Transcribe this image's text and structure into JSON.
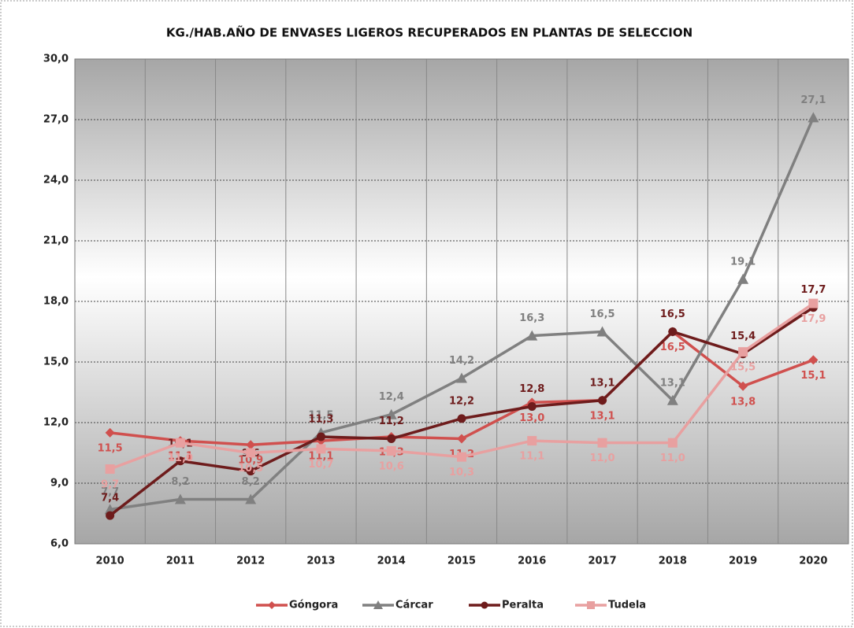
{
  "chart_data": {
    "type": "line",
    "title": "KG./HAB.AÑO DE ENVASES LIGEROS RECUPERADOS EN PLANTAS DE SELECCION",
    "categories": [
      "2010",
      "2011",
      "2012",
      "2013",
      "2014",
      "2015",
      "2016",
      "2017",
      "2018",
      "2019",
      "2020"
    ],
    "series": [
      {
        "name": "Góngora",
        "color": "#d0504e",
        "marker": "diamond",
        "values": [
          11.5,
          11.1,
          10.9,
          11.1,
          11.3,
          11.2,
          13.0,
          13.1,
          16.5,
          13.8,
          15.1
        ],
        "value_labels": [
          "11,5",
          "11,1",
          "10,9",
          "11,1",
          "11,3",
          "11,2",
          "13,0",
          "13,1",
          "16,5",
          "13,8",
          "15,1"
        ]
      },
      {
        "name": "Cárcar",
        "color": "#808080",
        "marker": "triangle",
        "values": [
          7.7,
          8.2,
          8.2,
          11.5,
          12.4,
          14.2,
          16.3,
          16.5,
          13.1,
          19.1,
          27.1
        ],
        "value_labels": [
          "7,7",
          "8,2",
          "8,2",
          "11,5",
          "12,4",
          "14,2",
          "16,3",
          "16,5",
          "13,1",
          "19,1",
          "27,1"
        ]
      },
      {
        "name": "Peralta",
        "color": "#6e1c1c",
        "marker": "circle",
        "values": [
          7.4,
          10.1,
          9.6,
          11.3,
          11.2,
          12.2,
          12.8,
          13.1,
          16.5,
          15.4,
          17.7
        ],
        "value_labels": [
          "7,4",
          "10,1",
          "9,6",
          "11,3",
          "11,2",
          "12,2",
          "12,8",
          "13,1",
          "16,5",
          "15,4",
          "17,7"
        ]
      },
      {
        "name": "Tudela",
        "color": "#e8a0a0",
        "marker": "square",
        "values": [
          9.7,
          11.0,
          10.5,
          10.7,
          10.6,
          10.3,
          11.1,
          11.0,
          11.0,
          15.5,
          17.9
        ],
        "value_labels": [
          "9,7",
          "11,0",
          "10,5",
          "10,7",
          "10,6",
          "10,3",
          "11,1",
          "11,0",
          "11,0",
          "15,5",
          "17,9"
        ]
      }
    ],
    "ylim": [
      6,
      30
    ],
    "yticks": [
      {
        "value": 6,
        "label": "6,0"
      },
      {
        "value": 9,
        "label": "9,0"
      },
      {
        "value": 12,
        "label": "12,0"
      },
      {
        "value": 15,
        "label": "15,0"
      },
      {
        "value": 18,
        "label": "18,0"
      },
      {
        "value": 21,
        "label": "21,0"
      },
      {
        "value": 24,
        "label": "24,0"
      },
      {
        "value": 27,
        "label": "27,0"
      },
      {
        "value": 30,
        "label": "30,0"
      }
    ],
    "grid": true,
    "legend": "bottom"
  }
}
